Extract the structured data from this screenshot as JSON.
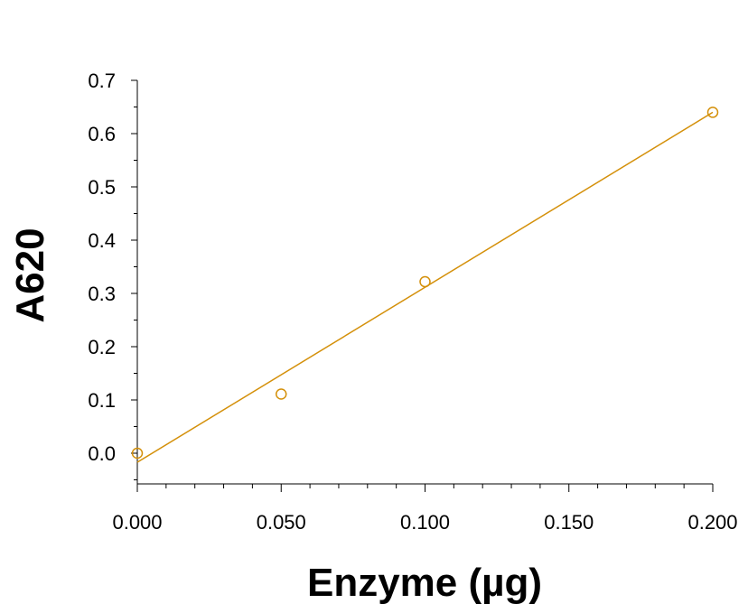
{
  "chart_data": {
    "type": "scatter",
    "title": "",
    "xlabel": "Enzyme (µg)",
    "ylabel": "A620",
    "xlim": [
      0,
      0.2
    ],
    "ylim": [
      -0.06,
      0.7
    ],
    "x_ticks": [
      "0.000",
      "0.050",
      "0.100",
      "0.150",
      "0.200"
    ],
    "x_tick_values": [
      0,
      0.05,
      0.1,
      0.15,
      0.2
    ],
    "y_ticks": [
      "0.0",
      "0.1",
      "0.2",
      "0.3",
      "0.4",
      "0.5",
      "0.6",
      "0.7"
    ],
    "y_tick_values": [
      0,
      0.1,
      0.2,
      0.3,
      0.4,
      0.5,
      0.6,
      0.7
    ],
    "grid": false,
    "legend": "none",
    "color": "#d4900a",
    "points": [
      {
        "x": 0.0,
        "y": 0.0
      },
      {
        "x": 0.05,
        "y": 0.111
      },
      {
        "x": 0.1,
        "y": 0.322
      },
      {
        "x": 0.2,
        "y": 0.64
      }
    ],
    "fit_line": {
      "type": "linear",
      "x": [
        0.0,
        0.2
      ],
      "y": [
        -0.017,
        0.64
      ]
    }
  }
}
